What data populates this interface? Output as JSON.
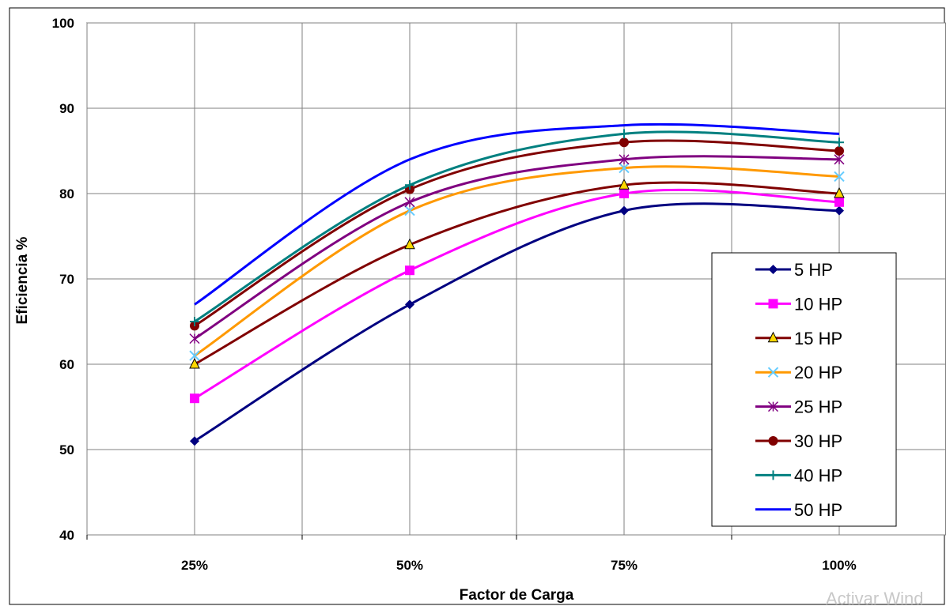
{
  "chart_data": {
    "type": "line",
    "title": "",
    "xlabel": "Factor de Carga",
    "ylabel": "Eficiencia %",
    "categories": [
      "25%",
      "50%",
      "75%",
      "100%"
    ],
    "ylim": [
      40,
      100
    ],
    "yticks": [
      40,
      50,
      60,
      70,
      80,
      90,
      100
    ],
    "grid": true,
    "legend_position": "bottom-right",
    "series": [
      {
        "name": "5 HP",
        "values": [
          51,
          67,
          78,
          78
        ],
        "color": "#000080",
        "marker": "diamond"
      },
      {
        "name": "10 HP",
        "values": [
          56,
          71,
          80,
          79
        ],
        "color": "#ff00ff",
        "marker": "square"
      },
      {
        "name": "15 HP",
        "values": [
          60,
          74,
          81,
          80
        ],
        "color": "#800000",
        "marker": "triangle"
      },
      {
        "name": "20 HP",
        "values": [
          61,
          78,
          83,
          82
        ],
        "color": "#ff9900",
        "marker": "x"
      },
      {
        "name": "25 HP",
        "values": [
          63,
          79,
          84,
          84
        ],
        "color": "#800080",
        "marker": "star"
      },
      {
        "name": "30 HP",
        "values": [
          64.5,
          80.5,
          86,
          85
        ],
        "color": "#800000",
        "marker": "circle"
      },
      {
        "name": "40 HP",
        "values": [
          65,
          81,
          87,
          86
        ],
        "color": "#008080",
        "marker": "plus"
      },
      {
        "name": "50 HP",
        "values": [
          67,
          84,
          88,
          87
        ],
        "color": "#0000ff",
        "marker": "none"
      }
    ]
  },
  "watermark_text": "Activar Wind"
}
